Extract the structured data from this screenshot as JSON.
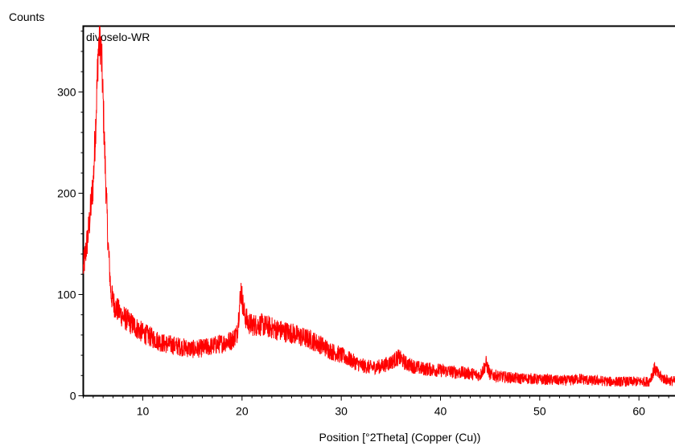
{
  "chart_data": {
    "type": "line",
    "title": "",
    "sample_label": "divoselo-WR",
    "xlabel": "Position [°2Theta] (Copper (Cu))",
    "ylabel": "Counts",
    "xlim": [
      4,
      64
    ],
    "ylim": [
      0,
      365
    ],
    "x_ticks": [
      10,
      20,
      30,
      40,
      50,
      60
    ],
    "y_ticks": [
      0,
      100,
      200,
      300
    ],
    "grid": false,
    "line_color": "#ff0000",
    "series": [
      {
        "x": [
          4.0,
          4.5,
          5.0,
          5.3,
          5.5,
          5.7,
          5.9,
          6.2,
          6.5,
          6.8,
          7.2,
          8,
          9,
          10,
          11,
          12,
          13,
          14,
          15,
          16,
          17,
          18,
          19,
          19.5,
          19.9,
          20.2,
          20.6,
          21,
          22,
          23,
          24,
          25,
          26,
          27,
          28,
          29,
          30,
          31,
          32,
          33,
          34,
          35,
          35.8,
          36.5,
          37,
          38,
          39,
          40,
          41,
          42,
          43,
          44,
          44.6,
          45,
          46,
          47,
          48,
          49,
          50,
          51,
          52,
          53,
          54,
          55,
          56,
          57,
          58,
          59,
          60,
          61,
          61.6,
          62,
          62.5,
          63,
          64
        ],
        "y": [
          125,
          160,
          210,
          280,
          340,
          355,
          320,
          230,
          150,
          100,
          88,
          78,
          70,
          62,
          57,
          52,
          50,
          48,
          46,
          47,
          49,
          52,
          55,
          62,
          105,
          82,
          72,
          70,
          70,
          67,
          64,
          62,
          58,
          55,
          50,
          44,
          40,
          35,
          30,
          28,
          29,
          33,
          38,
          32,
          30,
          27,
          26,
          25,
          24,
          23,
          22,
          20,
          32,
          21,
          19,
          18,
          17,
          17,
          16,
          16,
          15,
          15,
          17,
          15,
          15,
          14,
          14,
          14,
          14,
          14,
          27,
          20,
          17,
          15,
          14
        ]
      }
    ]
  }
}
